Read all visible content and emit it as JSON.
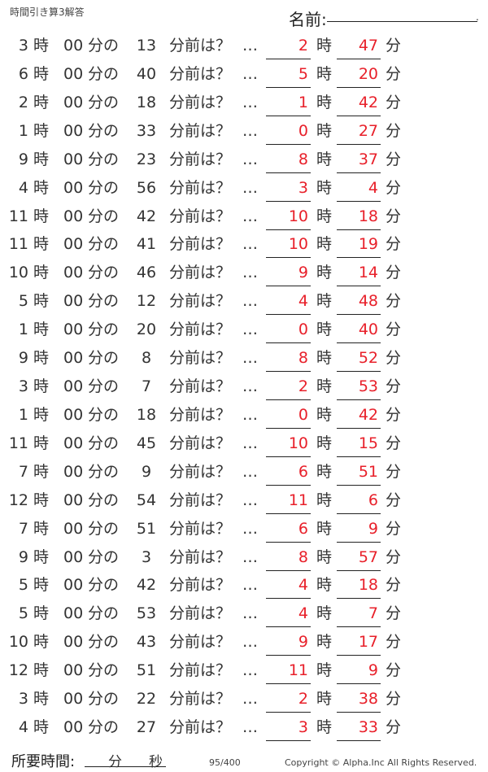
{
  "header": {
    "title": "時間引き算3解答",
    "name_label": "名前:",
    "name_dot": "."
  },
  "labels": {
    "hour": "時",
    "zero_min": "00",
    "min_of": "分の",
    "min_before": "分前は？",
    "ellipsis": "…",
    "ans_hour": "時",
    "ans_min": "分"
  },
  "rows": [
    {
      "h": "3",
      "m": "13",
      "ah": "2",
      "am": "47"
    },
    {
      "h": "6",
      "m": "40",
      "ah": "5",
      "am": "20"
    },
    {
      "h": "2",
      "m": "18",
      "ah": "1",
      "am": "42"
    },
    {
      "h": "1",
      "m": "33",
      "ah": "0",
      "am": "27"
    },
    {
      "h": "9",
      "m": "23",
      "ah": "8",
      "am": "37"
    },
    {
      "h": "4",
      "m": "56",
      "ah": "3",
      "am": "4"
    },
    {
      "h": "11",
      "m": "42",
      "ah": "10",
      "am": "18"
    },
    {
      "h": "11",
      "m": "41",
      "ah": "10",
      "am": "19"
    },
    {
      "h": "10",
      "m": "46",
      "ah": "9",
      "am": "14"
    },
    {
      "h": "5",
      "m": "12",
      "ah": "4",
      "am": "48"
    },
    {
      "h": "1",
      "m": "20",
      "ah": "0",
      "am": "40"
    },
    {
      "h": "9",
      "m": "8",
      "ah": "8",
      "am": "52"
    },
    {
      "h": "3",
      "m": "7",
      "ah": "2",
      "am": "53"
    },
    {
      "h": "1",
      "m": "18",
      "ah": "0",
      "am": "42"
    },
    {
      "h": "11",
      "m": "45",
      "ah": "10",
      "am": "15"
    },
    {
      "h": "7",
      "m": "9",
      "ah": "6",
      "am": "51"
    },
    {
      "h": "12",
      "m": "54",
      "ah": "11",
      "am": "6"
    },
    {
      "h": "7",
      "m": "51",
      "ah": "6",
      "am": "9"
    },
    {
      "h": "9",
      "m": "3",
      "ah": "8",
      "am": "57"
    },
    {
      "h": "5",
      "m": "42",
      "ah": "4",
      "am": "18"
    },
    {
      "h": "5",
      "m": "53",
      "ah": "4",
      "am": "7"
    },
    {
      "h": "10",
      "m": "43",
      "ah": "9",
      "am": "17"
    },
    {
      "h": "12",
      "m": "51",
      "ah": "11",
      "am": "9"
    },
    {
      "h": "3",
      "m": "22",
      "ah": "2",
      "am": "38"
    },
    {
      "h": "4",
      "m": "27",
      "ah": "3",
      "am": "33"
    }
  ],
  "footer": {
    "time_label": "所要時間:",
    "min": "分",
    "sec": "秒",
    "page": "95/400",
    "copyright": "Copyright ©  Alpha.Inc All Rights Reserved."
  },
  "colors": {
    "answer": "#e8202a",
    "text": "#333333"
  }
}
